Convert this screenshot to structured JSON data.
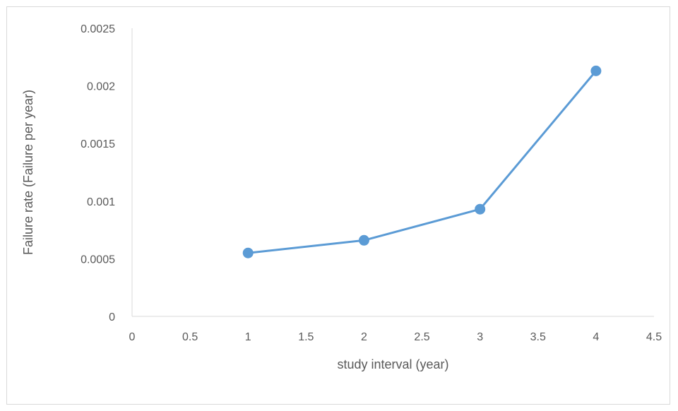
{
  "chart_data": {
    "type": "scatter",
    "mode": "lines+markers",
    "title": "",
    "xlabel": "study interval (year)",
    "ylabel": "Failure rate (Failure per year)",
    "xlim": [
      0,
      4.5
    ],
    "ylim": [
      0,
      0.0025
    ],
    "x_ticks": [
      "0",
      "0.5",
      "1",
      "1.5",
      "2",
      "2.5",
      "3",
      "3.5",
      "4",
      "4.5"
    ],
    "y_ticks": [
      "0",
      "0.0005",
      "0.001",
      "0.0015",
      "0.002",
      "0.0025"
    ],
    "grid": false,
    "legend": "none",
    "series": [
      {
        "x": [
          1,
          2,
          3,
          4
        ],
        "y": [
          0.00055,
          0.00066,
          0.00093,
          0.00213
        ],
        "color": "#5b9bd5"
      }
    ]
  }
}
